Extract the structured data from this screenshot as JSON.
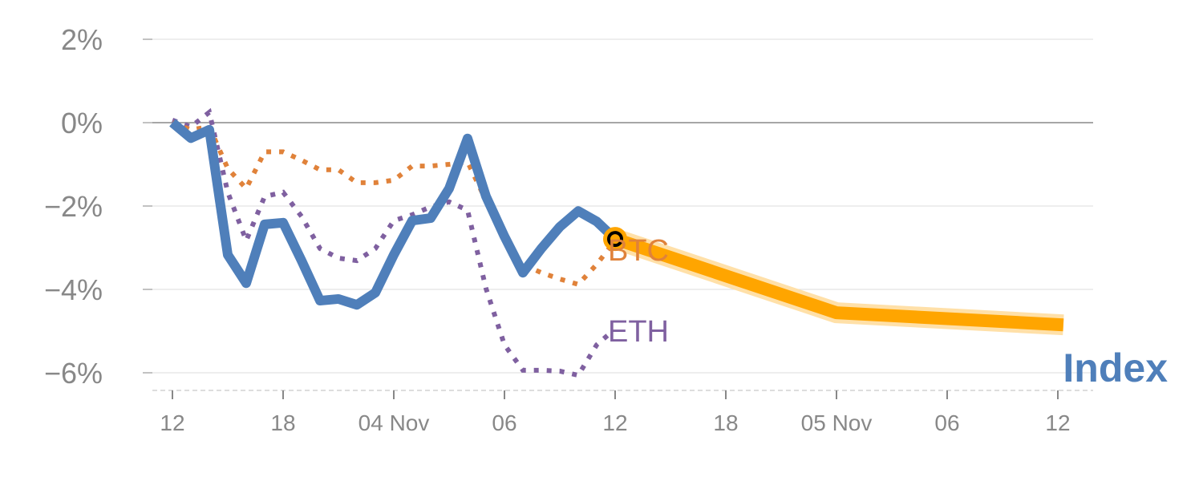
{
  "chart_data": {
    "type": "line",
    "title": "",
    "xlabel": "",
    "ylabel": "",
    "ylim": [
      -6.45,
      2.1
    ],
    "xlim": [
      0,
      48
    ],
    "grid": true,
    "y_ticks": [
      2,
      0,
      -2,
      -4,
      -6
    ],
    "y_tick_labels": [
      "2%",
      "0%",
      "−2%",
      "−4%",
      "−6%"
    ],
    "x_ticks": [
      0,
      6,
      12,
      18,
      24,
      30,
      36,
      42,
      48
    ],
    "x_tick_labels": [
      "12",
      "18",
      "04 Nov",
      "06",
      "12",
      "18",
      "05 Nov",
      "06",
      "12"
    ],
    "series": [
      {
        "name": "BTC",
        "label": "BTC",
        "style": "dotted",
        "color": "#e0823a",
        "x": [
          0,
          1,
          2,
          3,
          4,
          5,
          6,
          7,
          8,
          9,
          10,
          11,
          12,
          13,
          14,
          15,
          16,
          17,
          18,
          19,
          20,
          21,
          22,
          23,
          24
        ],
        "values": [
          0,
          -0.17,
          -0.1,
          -1.1,
          -1.58,
          -0.7,
          -0.7,
          -0.9,
          -1.13,
          -1.13,
          -1.44,
          -1.44,
          -1.38,
          -1.04,
          -1.04,
          -1.0,
          -0.94,
          -1.87,
          -2.83,
          -3.4,
          -3.6,
          -3.75,
          -3.88,
          -3.4,
          -2.83
        ]
      },
      {
        "name": "ETH",
        "label": "ETH",
        "style": "dotted",
        "color": "#7f60a0",
        "x": [
          0,
          1,
          2,
          3,
          4,
          5,
          6,
          7,
          8,
          9,
          10,
          11,
          12,
          13,
          14,
          15,
          16,
          17,
          18,
          19,
          20,
          21,
          22,
          23,
          23.6
        ],
        "values": [
          0.06,
          -0.1,
          0.25,
          -1.67,
          -2.83,
          -1.77,
          -1.67,
          -2.25,
          -3.02,
          -3.25,
          -3.31,
          -3.02,
          -2.35,
          -2.21,
          -2.02,
          -1.9,
          -2.1,
          -3.98,
          -5.33,
          -5.94,
          -5.94,
          -5.96,
          -6.06,
          -5.33,
          -5.1
        ]
      },
      {
        "name": "Index",
        "label": "Index",
        "style": "solid",
        "color": "#4f7fba",
        "x": [
          0,
          1,
          2,
          3,
          4,
          5,
          6,
          7,
          8,
          9,
          10,
          11,
          12,
          13,
          14,
          15,
          16,
          17,
          18,
          19,
          20,
          21,
          22,
          23,
          24
        ],
        "values": [
          0,
          -0.37,
          -0.17,
          -3.17,
          -3.85,
          -2.44,
          -2.4,
          -3.31,
          -4.27,
          -4.23,
          -4.37,
          -4.08,
          -3.17,
          -2.35,
          -2.29,
          -1.58,
          -0.38,
          -1.77,
          -2.73,
          -3.6,
          -3.02,
          -2.5,
          -2.12,
          -2.37,
          -2.79
        ]
      },
      {
        "name": "Index projection",
        "style": "highlight",
        "color": "#ffa500",
        "x": [
          24,
          36,
          48.3
        ],
        "values": [
          -2.79,
          -4.56,
          -4.85
        ]
      }
    ],
    "marker": {
      "x": 24,
      "value": -2.79,
      "color": "#ffa500"
    }
  }
}
